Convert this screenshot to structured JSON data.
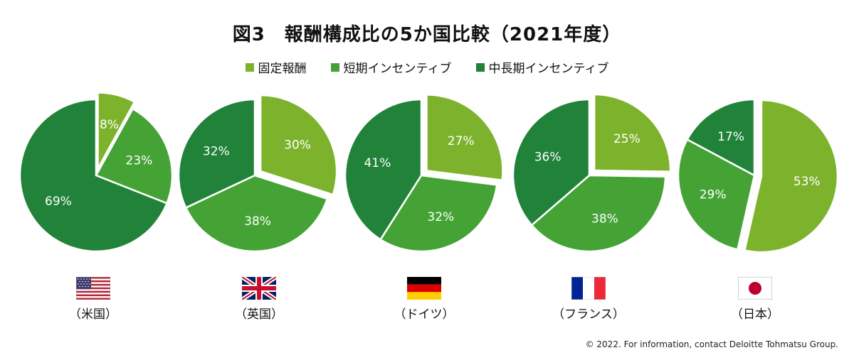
{
  "title": "図3　報酬構成比の5か国比較（2021年度）",
  "footer": "© 2022. For information, contact Deloitte Tohmatsu Group.",
  "colors": {
    "fixed": "#7db32c",
    "short_term": "#45a336",
    "long_term": "#218339"
  },
  "chart_data": {
    "type": "pie",
    "title": "図3　報酬構成比の5か国比較（2021年度）",
    "legend": [
      "固定報酬",
      "短期インセンティブ",
      "中長期インセンティブ"
    ],
    "legend_placement": "top",
    "unit": "%",
    "charts": [
      {
        "country": "（米国）",
        "flag": "us-flag",
        "values": [
          8,
          23,
          69
        ],
        "labels": [
          "8%",
          "23%",
          "69%"
        ]
      },
      {
        "country": "（英国）",
        "flag": "uk-flag",
        "values": [
          30,
          38,
          32
        ],
        "labels": [
          "30%",
          "38%",
          "32%"
        ]
      },
      {
        "country": "（ドイツ）",
        "flag": "germany-flag",
        "values": [
          27,
          32,
          41
        ],
        "labels": [
          "27%",
          "32%",
          "41%"
        ]
      },
      {
        "country": "（フランス）",
        "flag": "france-flag",
        "values": [
          25,
          38,
          36
        ],
        "labels": [
          "25%",
          "38%",
          "36%"
        ]
      },
      {
        "country": "（日本）",
        "flag": "japan-flag",
        "values": [
          53,
          29,
          17
        ],
        "labels": [
          "53%",
          "29%",
          "17%"
        ]
      }
    ]
  }
}
